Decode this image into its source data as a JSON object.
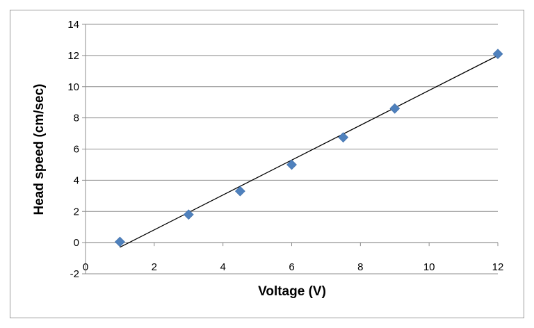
{
  "chart_data": {
    "type": "scatter",
    "title": "",
    "xlabel": "Voltage (V)",
    "ylabel": "Head speed (cm/sec)",
    "xlim": [
      0,
      12
    ],
    "ylim": [
      -2,
      14
    ],
    "x_ticks": [
      0,
      2,
      4,
      6,
      8,
      10,
      12
    ],
    "y_ticks": [
      -2,
      0,
      2,
      4,
      6,
      8,
      10,
      12,
      14
    ],
    "grid": "horizontal",
    "legend": "none",
    "series": [
      {
        "marker": "diamond",
        "color": "#4f81bd",
        "points": [
          {
            "x": 1,
            "y": 0.05
          },
          {
            "x": 3,
            "y": 1.8
          },
          {
            "x": 4.5,
            "y": 3.3
          },
          {
            "x": 6,
            "y": 5.0
          },
          {
            "x": 7.5,
            "y": 6.75
          },
          {
            "x": 9,
            "y": 8.6
          },
          {
            "x": 12,
            "y": 12.1
          }
        ]
      }
    ],
    "trendline": {
      "type": "linear",
      "color": "#000000",
      "start": {
        "x": 1,
        "y": -0.3
      },
      "end": {
        "x": 12,
        "y": 12.0
      }
    }
  }
}
